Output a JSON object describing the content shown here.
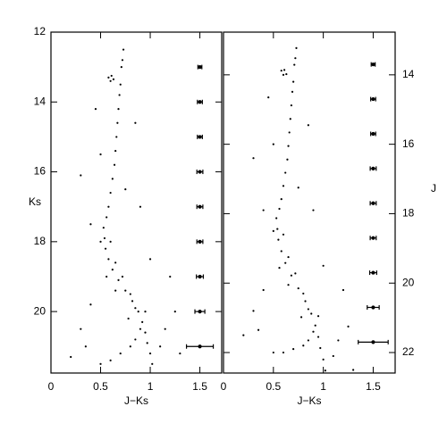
{
  "chart_data": [
    {
      "type": "scatter",
      "xlabel": "J−Ks",
      "ylabel": "Ks",
      "color": "#000000",
      "xlim": [
        0,
        1.72
      ],
      "ylim": [
        12,
        21.76
      ],
      "y_inverted": true,
      "tick_side": "left",
      "xticks": [
        0,
        0.5,
        1,
        1.5
      ],
      "yticks": [
        12,
        14,
        16,
        18,
        20
      ],
      "x": [
        0.73,
        0.72,
        0.71,
        0.7,
        0.69,
        0.68,
        0.67,
        0.66,
        0.65,
        0.64,
        0.62,
        0.6,
        0.58,
        0.56,
        0.58,
        0.61,
        0.63,
        0.6,
        0.53,
        0.54,
        0.55,
        0.58,
        0.62,
        0.68,
        0.75,
        0.82,
        0.88,
        0.92,
        0.95,
        0.97,
        1.0,
        1.02,
        0.5,
        0.6,
        0.65,
        0.72,
        0.8,
        0.85,
        0.9,
        0.85,
        0.8,
        0.7,
        0.6,
        0.5,
        1.1,
        1.15,
        0.95,
        0.78,
        0.65,
        0.56,
        0.3,
        0.4,
        0.2,
        1.3,
        0.9,
        0.5,
        0.85,
        0.4,
        1.2,
        0.3,
        0.35,
        1.25,
        0.75,
        0.45,
        1.0
      ],
      "y": [
        12.5,
        12.8,
        13.0,
        13.5,
        13.8,
        14.2,
        14.6,
        15.0,
        15.4,
        15.8,
        16.2,
        16.6,
        17.0,
        17.3,
        13.3,
        13.25,
        13.35,
        13.4,
        17.6,
        17.9,
        18.2,
        18.5,
        18.8,
        19.1,
        19.4,
        19.7,
        20.0,
        20.3,
        20.6,
        20.9,
        21.2,
        21.5,
        18.0,
        18.0,
        18.6,
        19.0,
        19.5,
        19.9,
        20.5,
        20.8,
        21.0,
        21.2,
        21.4,
        21.5,
        21.0,
        20.5,
        20.0,
        20.2,
        19.4,
        19.0,
        20.5,
        19.8,
        21.3,
        21.2,
        17.0,
        15.5,
        14.6,
        17.5,
        19.0,
        16.1,
        21.0,
        20.0,
        16.5,
        14.2,
        18.5
      ],
      "errorbars": {
        "x": [
          1.5,
          1.5,
          1.5,
          1.5,
          1.5,
          1.5,
          1.5,
          1.5,
          1.5
        ],
        "y": [
          13,
          14,
          15,
          16,
          17,
          18,
          19,
          20,
          21
        ],
        "xerr": [
          0.02,
          0.025,
          0.025,
          0.03,
          0.03,
          0.03,
          0.035,
          0.05,
          0.135
        ]
      }
    },
    {
      "type": "scatter",
      "xlabel": "J−Ks",
      "ylabel": "J",
      "color": "#000000",
      "xlim": [
        0,
        1.72
      ],
      "ylim": [
        12.77,
        22.59
      ],
      "y_inverted": true,
      "tick_side": "right",
      "xticks": [
        0,
        0.5,
        1,
        1.5
      ],
      "yticks": [
        14,
        16,
        18,
        20,
        22
      ],
      "x": [
        0.73,
        0.72,
        0.71,
        0.7,
        0.69,
        0.68,
        0.67,
        0.66,
        0.65,
        0.64,
        0.62,
        0.6,
        0.58,
        0.56,
        0.58,
        0.61,
        0.63,
        0.6,
        0.53,
        0.54,
        0.55,
        0.58,
        0.62,
        0.68,
        0.75,
        0.82,
        0.88,
        0.92,
        0.95,
        0.97,
        1.0,
        1.02,
        0.5,
        0.6,
        0.65,
        0.72,
        0.8,
        0.85,
        0.9,
        0.85,
        0.8,
        0.7,
        0.6,
        0.5,
        1.1,
        1.15,
        0.95,
        0.78,
        0.65,
        0.56,
        0.3,
        0.4,
        0.2,
        1.3,
        0.9,
        0.5,
        0.85,
        0.4,
        1.2,
        0.3,
        0.35,
        1.25,
        0.75,
        0.45,
        1.0
      ],
      "y": [
        13.23,
        13.52,
        13.71,
        14.2,
        14.49,
        14.88,
        15.27,
        15.66,
        16.05,
        16.44,
        16.82,
        17.2,
        17.58,
        17.86,
        13.88,
        13.86,
        13.98,
        14.0,
        18.13,
        18.44,
        18.75,
        19.08,
        19.42,
        19.78,
        20.15,
        20.52,
        20.88,
        21.22,
        21.55,
        21.87,
        22.2,
        22.52,
        18.5,
        18.6,
        19.25,
        19.72,
        20.3,
        20.75,
        21.4,
        21.65,
        21.8,
        21.9,
        22.0,
        22.0,
        22.1,
        21.65,
        20.95,
        20.98,
        20.05,
        19.56,
        20.8,
        20.2,
        21.5,
        22.5,
        17.9,
        16.0,
        15.45,
        17.9,
        20.2,
        16.4,
        21.35,
        21.25,
        17.25,
        14.65,
        19.5
      ],
      "errorbars": {
        "x": [
          1.5,
          1.5,
          1.5,
          1.5,
          1.5,
          1.5,
          1.5,
          1.5,
          1.5
        ],
        "y": [
          13.7,
          14.7,
          15.7,
          16.7,
          17.7,
          18.7,
          19.7,
          20.7,
          21.7
        ],
        "xerr": [
          0.02,
          0.025,
          0.025,
          0.03,
          0.03,
          0.03,
          0.035,
          0.06,
          0.15
        ]
      }
    }
  ]
}
